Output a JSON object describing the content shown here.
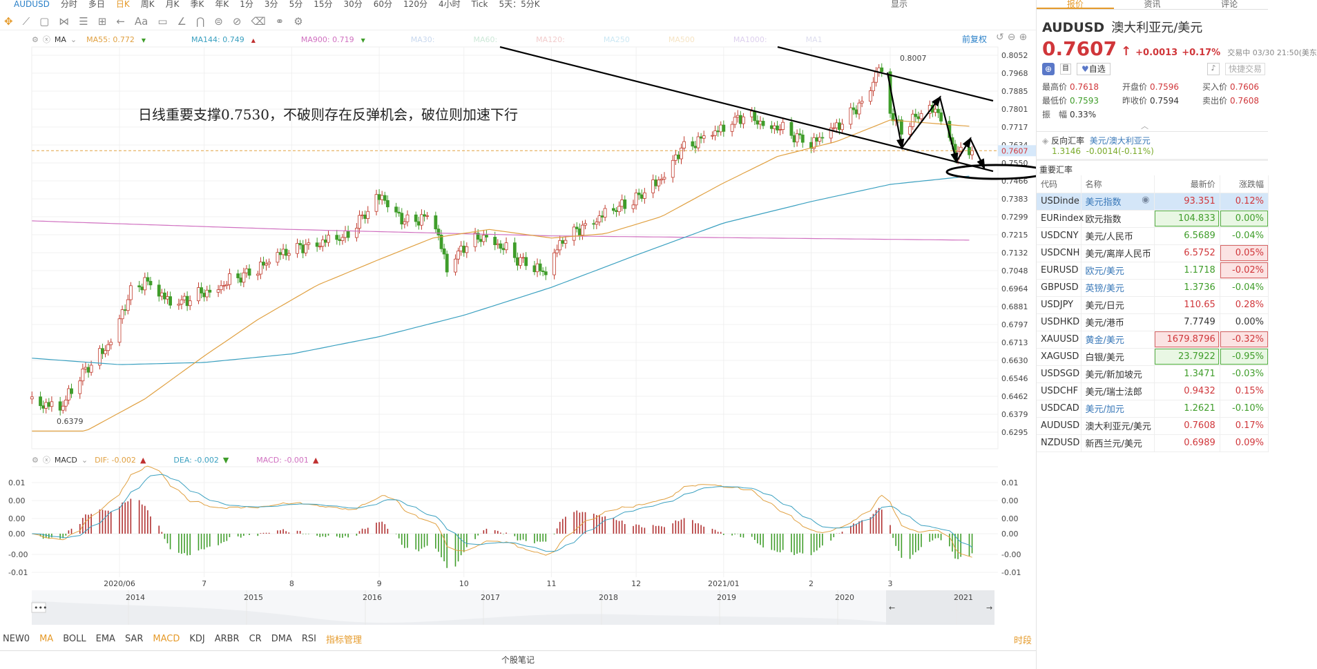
{
  "top_tabs": {
    "symbol": "AUDUSD",
    "items": [
      "分时",
      "多日",
      "日K",
      "周K",
      "月K",
      "季K",
      "年K",
      "1分",
      "3分",
      "5分",
      "15分",
      "30分",
      "60分",
      "120分",
      "4小时",
      "Tick",
      "5天：5分K"
    ],
    "active": "日K",
    "display": "显示"
  },
  "toolbar": {
    "icons": [
      "move-icon",
      "line-tool-icon",
      "rect-tool-icon",
      "fib-tool-icon",
      "channel-tool-icon",
      "measure-tool-icon",
      "arrow-tool-icon",
      "text-tool-icon",
      "comment-tool-icon",
      "angle-tool-icon",
      "magnet-icon",
      "lock-icon",
      "hide-icon",
      "trash-icon",
      "compare-icon",
      "settings-icon"
    ],
    "text_label": "Aa"
  },
  "ma_legend": {
    "label": "MA",
    "items": [
      {
        "text": "MA55: 0.772",
        "trend": "▼",
        "color": "#e0a040"
      },
      {
        "text": "MA144: 0.749",
        "trend": "▲",
        "color": "#3aa0c0"
      },
      {
        "text": "MA900: 0.719",
        "trend": "▼",
        "color": "#d070c0"
      },
      {
        "text": "MA30:",
        "color": "#c8d8ee"
      },
      {
        "text": "MA60:",
        "color": "#cde8d8"
      },
      {
        "text": "MA120:",
        "color": "#f2cccc"
      },
      {
        "text": "MA250",
        "color": "#cce8f4"
      },
      {
        "text": "MA500",
        "color": "#f6e4c4"
      },
      {
        "text": "MA1000:",
        "color": "#ddd0ee"
      },
      {
        "text": "MA1",
        "color": "#dde"
      }
    ],
    "adjust": "前复权"
  },
  "macd_legend": {
    "label": "MACD",
    "dif": "DIF: -0.002",
    "dif_trend": "▲",
    "dea": "DEA: -0.002",
    "dea_trend": "▼",
    "macd": "MACD: -0.001",
    "macd_trend": "▲"
  },
  "annotation": {
    "text": "日线重要支撑0.7530，不破则存在反弹机会，破位则加速下行",
    "high_label": "0.8007",
    "low_label": "0.6379"
  },
  "chart_data": {
    "type": "candlestick",
    "price_ticks": [
      "0.8052",
      "0.7968",
      "0.7885",
      "0.7801",
      "0.7717",
      "0.7634",
      "0.7550",
      "0.7466",
      "0.7383",
      "0.7299",
      "0.7215",
      "0.7132",
      "0.7048",
      "0.6964",
      "0.6881",
      "0.6797",
      "0.6713",
      "0.6630",
      "0.6546",
      "0.6462",
      "0.6379",
      "0.6295"
    ],
    "ylim": [
      0.6295,
      0.8052
    ],
    "current_price": "0.7607",
    "x_ticks": [
      [
        "2020/06",
        "2020-06-01"
      ],
      [
        "7",
        "2020-07-01"
      ],
      [
        "8",
        "2020-08-01"
      ],
      [
        "9",
        "2020-09-01"
      ],
      [
        "10",
        "2020-10-01"
      ],
      [
        "11",
        "2020-11-01"
      ],
      [
        "12",
        "2020-12-01"
      ],
      [
        "2021/01",
        "2021-01-01"
      ],
      [
        "2",
        "2021-02-01"
      ],
      [
        "3",
        "2021-03-01"
      ]
    ],
    "close_anchors": [
      [
        "2020-05-01",
        0.645
      ],
      [
        "2020-05-11",
        0.64
      ],
      [
        "2020-05-18",
        0.655
      ],
      [
        "2020-05-27",
        0.668
      ],
      [
        "2020-06-05",
        0.695
      ],
      [
        "2020-06-10",
        0.7
      ],
      [
        "2020-06-20",
        0.688
      ],
      [
        "2020-07-01",
        0.695
      ],
      [
        "2020-07-10",
        0.7
      ],
      [
        "2020-07-20",
        0.705
      ],
      [
        "2020-07-31",
        0.715
      ],
      [
        "2020-08-10",
        0.718
      ],
      [
        "2020-08-20",
        0.72
      ],
      [
        "2020-08-31",
        0.737
      ],
      [
        "2020-09-02",
        0.74
      ],
      [
        "2020-09-10",
        0.728
      ],
      [
        "2020-09-20",
        0.73
      ],
      [
        "2020-09-25",
        0.705
      ],
      [
        "2020-10-01",
        0.716
      ],
      [
        "2020-10-09",
        0.722
      ],
      [
        "2020-10-20",
        0.71
      ],
      [
        "2020-10-30",
        0.703
      ],
      [
        "2020-11-05",
        0.72
      ],
      [
        "2020-11-15",
        0.728
      ],
      [
        "2020-11-30",
        0.737
      ],
      [
        "2020-12-08",
        0.745
      ],
      [
        "2020-12-17",
        0.762
      ],
      [
        "2020-12-31",
        0.77
      ],
      [
        "2021-01-08",
        0.777
      ],
      [
        "2021-01-20",
        0.772
      ],
      [
        "2021-02-01",
        0.763
      ],
      [
        "2021-02-10",
        0.772
      ],
      [
        "2021-02-20",
        0.785
      ],
      [
        "2021-02-25",
        0.8
      ],
      [
        "2021-03-01",
        0.778
      ],
      [
        "2021-03-05",
        0.77
      ],
      [
        "2021-03-12",
        0.778
      ],
      [
        "2021-03-18",
        0.78
      ],
      [
        "2021-03-24",
        0.76
      ],
      [
        "2021-03-30",
        0.7607
      ]
    ],
    "ma55": [
      [
        "2020-05-01",
        0.63
      ],
      [
        "2020-05-20",
        0.63
      ],
      [
        "2020-06-10",
        0.645
      ],
      [
        "2020-07-01",
        0.665
      ],
      [
        "2020-07-20",
        0.682
      ],
      [
        "2020-08-10",
        0.698
      ],
      [
        "2020-09-01",
        0.71
      ],
      [
        "2020-09-20",
        0.72
      ],
      [
        "2020-10-10",
        0.724
      ],
      [
        "2020-11-01",
        0.72
      ],
      [
        "2020-11-20",
        0.722
      ],
      [
        "2020-12-10",
        0.73
      ],
      [
        "2020-12-31",
        0.745
      ],
      [
        "2021-01-20",
        0.758
      ],
      [
        "2021-02-10",
        0.765
      ],
      [
        "2021-03-01",
        0.775
      ],
      [
        "2021-03-30",
        0.772
      ]
    ],
    "ma144": [
      [
        "2020-05-01",
        0.664
      ],
      [
        "2020-06-01",
        0.661
      ],
      [
        "2020-07-01",
        0.662
      ],
      [
        "2020-08-01",
        0.666
      ],
      [
        "2020-09-01",
        0.674
      ],
      [
        "2020-10-01",
        0.684
      ],
      [
        "2020-11-01",
        0.697
      ],
      [
        "2020-12-01",
        0.712
      ],
      [
        "2021-01-01",
        0.727
      ],
      [
        "2021-02-01",
        0.737
      ],
      [
        "2021-03-01",
        0.745
      ],
      [
        "2021-03-30",
        0.749
      ]
    ],
    "ma900": [
      [
        "2020-05-01",
        0.728
      ],
      [
        "2020-08-01",
        0.724
      ],
      [
        "2020-11-01",
        0.721
      ],
      [
        "2021-03-30",
        0.719
      ]
    ],
    "colors": {
      "up": "#c0392b",
      "down": "#3f9d2a",
      "ma55": "#e0a040",
      "ma144": "#3aa0c0",
      "ma900": "#d070c0"
    },
    "macd_ticks": [
      "0.01",
      "0.00",
      "0.00",
      "0.00",
      "-0.00",
      "-0.01"
    ],
    "navigator_years": [
      "2014",
      "2015",
      "2016",
      "2017",
      "2018",
      "2019",
      "2020",
      "2021"
    ]
  },
  "indicator_tabs": {
    "items": [
      "NEW0",
      "MA",
      "BOLL",
      "EMA",
      "SAR",
      "MACD",
      "KDJ",
      "ARBR",
      "CR",
      "DMA",
      "RSI",
      "指标管理"
    ],
    "active": [
      "MA",
      "MACD",
      "指标管理"
    ],
    "right": "时段"
  },
  "bottom": {
    "notes": "个股笔记"
  },
  "right_panel": {
    "tabs": [
      "报价",
      "资讯",
      "评论"
    ],
    "symbol": "AUDUSD",
    "name": "澳大利亚元/美元",
    "price": "0.7607",
    "change": "+0.0013",
    "pct": "+0.17%",
    "status": "交易中 03/30 21:50(美东",
    "watch": "自选",
    "quick_trade": "快捷交易",
    "stats": [
      [
        "最高价",
        "0.7618",
        "red"
      ],
      [
        "开盘价",
        "0.7596",
        "red"
      ],
      [
        "买入价",
        "0.7606",
        "red"
      ],
      [
        "最低价",
        "0.7593",
        "green"
      ],
      [
        "昨收价",
        "0.7594",
        ""
      ],
      [
        "卖出价",
        "0.7608",
        "red"
      ],
      [
        "振　幅",
        "0.33%",
        ""
      ]
    ],
    "reverse": {
      "label": "反向汇率",
      "pair": "美元/澳大利亚元",
      "price": "1.3146",
      "change": "-0.0014(-0.11%)"
    },
    "section": "重要汇率",
    "headers": [
      "代码",
      "名称",
      "最新价",
      "涨跌幅"
    ],
    "rows": [
      {
        "code": "USDinde",
        "name": "美元指数",
        "price": "93.351",
        "pct": "0.12%",
        "pc": "red",
        "cc": "red",
        "nb": true,
        "sel": true
      },
      {
        "code": "EURindex",
        "name": "欧元指数",
        "price": "104.833",
        "pct": "0.00%",
        "pc": "green",
        "cc": "green",
        "pb": "g",
        "cb": "g"
      },
      {
        "code": "USDCNY",
        "name": "美元/人民币",
        "price": "6.5689",
        "pct": "-0.04%",
        "pc": "green",
        "cc": "green"
      },
      {
        "code": "USDCNH",
        "name": "美元/离岸人民币",
        "price": "6.5752",
        "pct": "0.05%",
        "pc": "red",
        "cc": "red",
        "cb": "r"
      },
      {
        "code": "EURUSD",
        "name": "欧元/美元",
        "price": "1.1718",
        "pct": "-0.02%",
        "pc": "green",
        "cc": "red",
        "cb": "r",
        "nb": true
      },
      {
        "code": "GBPUSD",
        "name": "英镑/美元",
        "price": "1.3736",
        "pct": "-0.04%",
        "pc": "green",
        "cc": "green",
        "nb": true
      },
      {
        "code": "USDJPY",
        "name": "美元/日元",
        "price": "110.65",
        "pct": "0.28%",
        "pc": "red",
        "cc": "red"
      },
      {
        "code": "USDHKD",
        "name": "美元/港币",
        "price": "7.7749",
        "pct": "0.00%",
        "pc": "",
        "cc": ""
      },
      {
        "code": "XAUUSD",
        "name": "黄金/美元",
        "price": "1679.8796",
        "pct": "-0.32%",
        "pc": "red",
        "cc": "red",
        "pb": "r",
        "cb": "r",
        "nb": true
      },
      {
        "code": "XAGUSD",
        "name": "白银/美元",
        "price": "23.7922",
        "pct": "-0.95%",
        "pc": "green",
        "cc": "green",
        "pb": "g",
        "cb": "g"
      },
      {
        "code": "USDSGD",
        "name": "美元/新加坡元",
        "price": "1.3471",
        "pct": "-0.03%",
        "pc": "green",
        "cc": "green"
      },
      {
        "code": "USDCHF",
        "name": "美元/瑞士法郎",
        "price": "0.9432",
        "pct": "0.15%",
        "pc": "red",
        "cc": "red"
      },
      {
        "code": "USDCAD",
        "name": "美元/加元",
        "price": "1.2621",
        "pct": "-0.10%",
        "pc": "green",
        "cc": "green",
        "nb": true
      },
      {
        "code": "AUDUSD",
        "name": "澳大利亚元/美元",
        "price": "0.7608",
        "pct": "0.17%",
        "pc": "red",
        "cc": "red"
      },
      {
        "code": "NZDUSD",
        "name": "新西兰元/美元",
        "price": "0.6989",
        "pct": "0.09%",
        "pc": "red",
        "cc": "red"
      }
    ]
  }
}
